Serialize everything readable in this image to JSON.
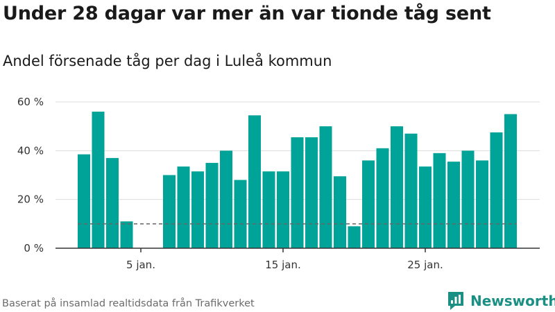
{
  "title": "Under 28 dagar var mer än var tionde tåg sent",
  "subtitle": "Andel försenade tåg per dag i Luleå kommun",
  "footer": "Baserat på insamlad realtidsdata från Trafikverket",
  "brand": {
    "name": "Newsworthy",
    "icon": "newsworthy-logo-icon",
    "color": "#1a8f84"
  },
  "chart_data": {
    "type": "bar",
    "x": [
      1,
      2,
      3,
      4,
      5,
      6,
      7,
      8,
      9,
      10,
      11,
      12,
      13,
      14,
      15,
      16,
      17,
      18,
      19,
      20,
      21,
      22,
      23,
      24,
      25,
      26,
      27,
      28,
      29,
      30,
      31
    ],
    "values": [
      38.5,
      56,
      37,
      11,
      null,
      null,
      30,
      33.5,
      31.5,
      35,
      40,
      28,
      54.5,
      31.5,
      31.5,
      45.5,
      45.5,
      50,
      29.5,
      9,
      36,
      41,
      50,
      47,
      33.5,
      39,
      35.5,
      40,
      36,
      47.5,
      55
    ],
    "x_ticks": [
      {
        "x": 5,
        "label": "5 jan."
      },
      {
        "x": 15,
        "label": "15 jan."
      },
      {
        "x": 25,
        "label": "25 jan."
      }
    ],
    "y_ticks": [
      {
        "value": 0,
        "label": "0 %"
      },
      {
        "value": 20,
        "label": "20 %"
      },
      {
        "value": 40,
        "label": "40 %"
      },
      {
        "value": 60,
        "label": "60 %"
      }
    ],
    "ylim": [
      0,
      60
    ],
    "reference_line": {
      "value": 10,
      "style": "dashed"
    },
    "bar_color": "#00a398",
    "grid": true,
    "xlabel": "",
    "ylabel": ""
  }
}
